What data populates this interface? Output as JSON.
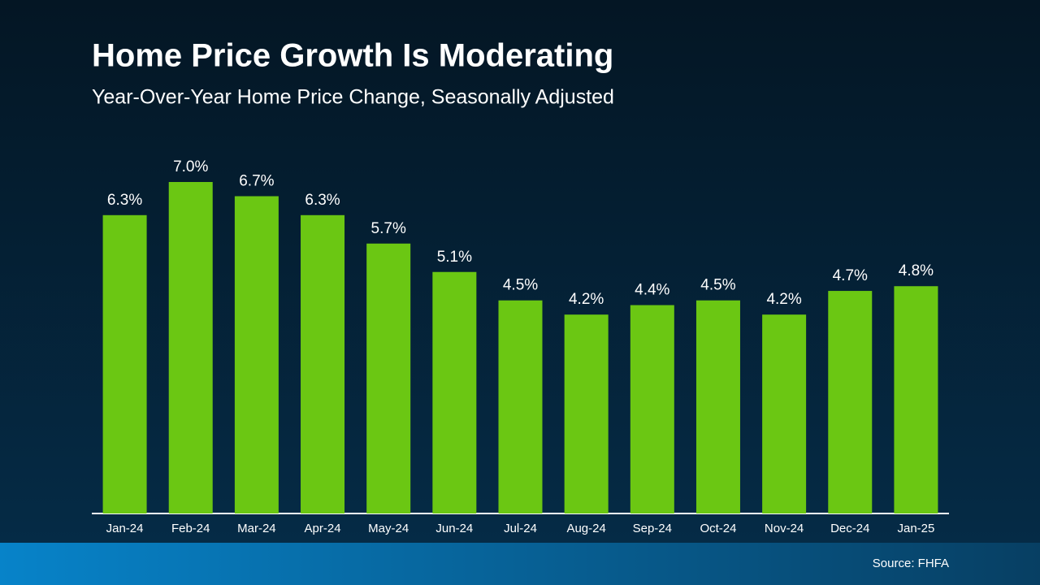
{
  "chart_data": {
    "type": "bar",
    "title": "Home Price Growth Is Moderating",
    "subtitle": "Year-Over-Year Home Price Change, Seasonally Adjusted",
    "categories": [
      "Jan-24",
      "Feb-24",
      "Mar-24",
      "Apr-24",
      "May-24",
      "Jun-24",
      "Jul-24",
      "Aug-24",
      "Sep-24",
      "Oct-24",
      "Nov-24",
      "Dec-24",
      "Jan-25"
    ],
    "values": [
      6.3,
      7.0,
      6.7,
      6.3,
      5.7,
      5.1,
      4.5,
      4.2,
      4.4,
      4.5,
      4.2,
      4.7,
      4.8
    ],
    "value_labels": [
      "6.3%",
      "7.0%",
      "6.7%",
      "6.3%",
      "5.7%",
      "5.1%",
      "4.5%",
      "4.2%",
      "4.4%",
      "4.5%",
      "4.2%",
      "4.7%",
      "4.8%"
    ],
    "color": "#6bc713",
    "source": "Source: FHFA"
  }
}
